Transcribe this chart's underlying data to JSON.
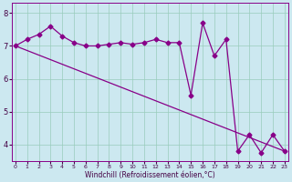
{
  "xlabel": "Windchill (Refroidissement éolien,°C)",
  "bg_color": "#cce8f0",
  "line_color": "#880088",
  "grid_color": "#99ccbb",
  "x_ticks": [
    0,
    1,
    2,
    3,
    4,
    5,
    6,
    7,
    8,
    9,
    10,
    11,
    12,
    13,
    14,
    15,
    16,
    17,
    18,
    19,
    20,
    21,
    22,
    23
  ],
  "y_ticks": [
    4,
    5,
    6,
    7,
    8
  ],
  "ylim": [
    3.5,
    8.3
  ],
  "xlim": [
    -0.3,
    23.3
  ],
  "series1_x": [
    0,
    1,
    2,
    3,
    4,
    5,
    6,
    7,
    8,
    9,
    10,
    11,
    12,
    13,
    14,
    15,
    16,
    17,
    18,
    19,
    20,
    21,
    22,
    23
  ],
  "series1_y": [
    7.0,
    7.2,
    7.35,
    7.6,
    7.3,
    7.1,
    7.0,
    7.0,
    7.05,
    7.1,
    7.05,
    7.1,
    7.2,
    7.1,
    7.1,
    5.5,
    7.7,
    6.7,
    7.2,
    3.8,
    4.3,
    3.75,
    4.3,
    3.8
  ],
  "series2_y_start": 7.0,
  "series2_y_end": 3.8,
  "marker": "D",
  "markersize": 2.5,
  "linewidth": 0.9,
  "xlabel_fontsize": 5.5,
  "tick_fontsize_x": 4.5,
  "tick_fontsize_y": 6.0,
  "tick_color": "#440044"
}
